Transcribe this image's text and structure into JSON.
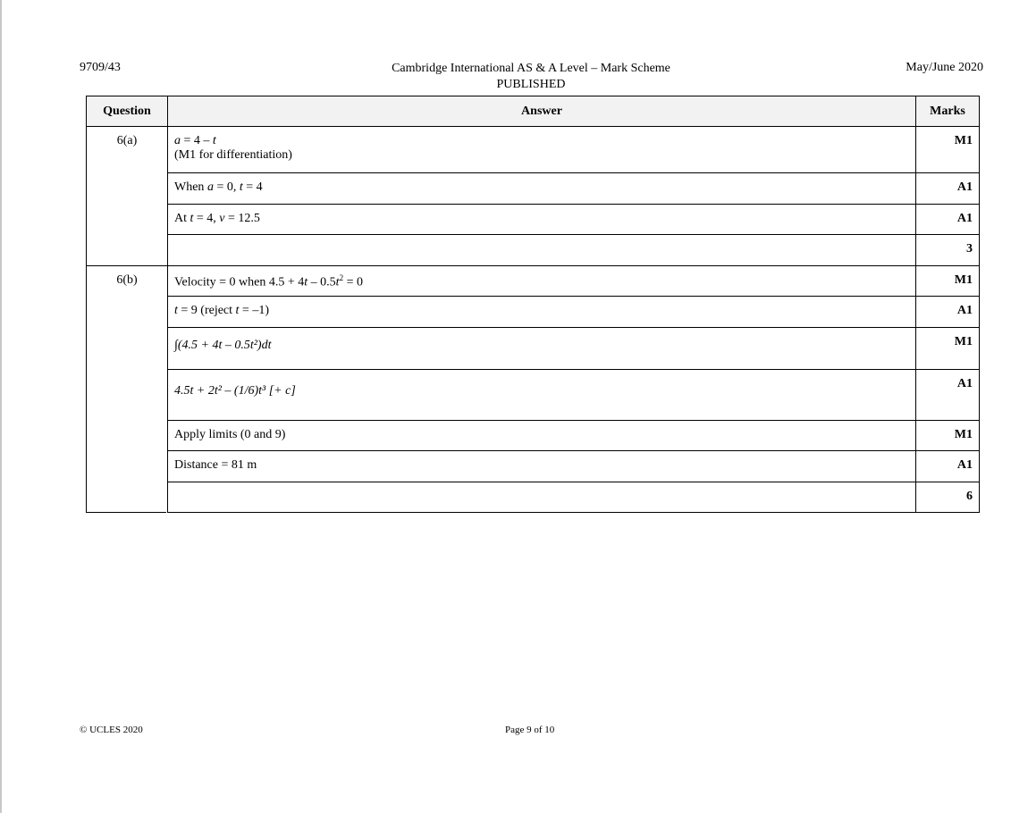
{
  "header": {
    "code": "9709/43",
    "title": "Cambridge International AS & A Level – Mark Scheme",
    "subtitle": "PUBLISHED",
    "session": "May/June 2020"
  },
  "table": {
    "headers": [
      "Question",
      "Answer",
      "Marks"
    ],
    "q6a": {
      "label": "6(a)",
      "rows": [
        {
          "answer": "a = 4 – t",
          "note": "(M1 for differentiation)",
          "mark": "M1"
        },
        {
          "answer": "When a = 0, t = 4",
          "mark": "A1"
        },
        {
          "answer": "At t = 4, v = 12.5",
          "mark": "A1"
        },
        {
          "answer": "",
          "mark": "3"
        }
      ]
    },
    "q6b": {
      "label": "6(b)",
      "rows": [
        {
          "answer": "Velocity = 0 when 4.5 + 4t – 0.5t² = 0",
          "mark": "M1"
        },
        {
          "answer": "t = 9 (reject t = –1)",
          "mark": "A1"
        },
        {
          "answer": "∫(4.5 + 4t – 0.5t²)dt",
          "mark": "M1"
        },
        {
          "answer": "4.5t + 2t² – (1/6)t³ [+ c]",
          "mark": "A1"
        },
        {
          "answer": "Apply limits (0 and 9)",
          "mark": "M1"
        },
        {
          "answer": "Distance = 81 m",
          "mark": "A1"
        },
        {
          "answer": "",
          "mark": "6"
        }
      ]
    }
  },
  "footer": {
    "copyright": "© UCLES 2020",
    "page": "Page 9 of 10"
  }
}
